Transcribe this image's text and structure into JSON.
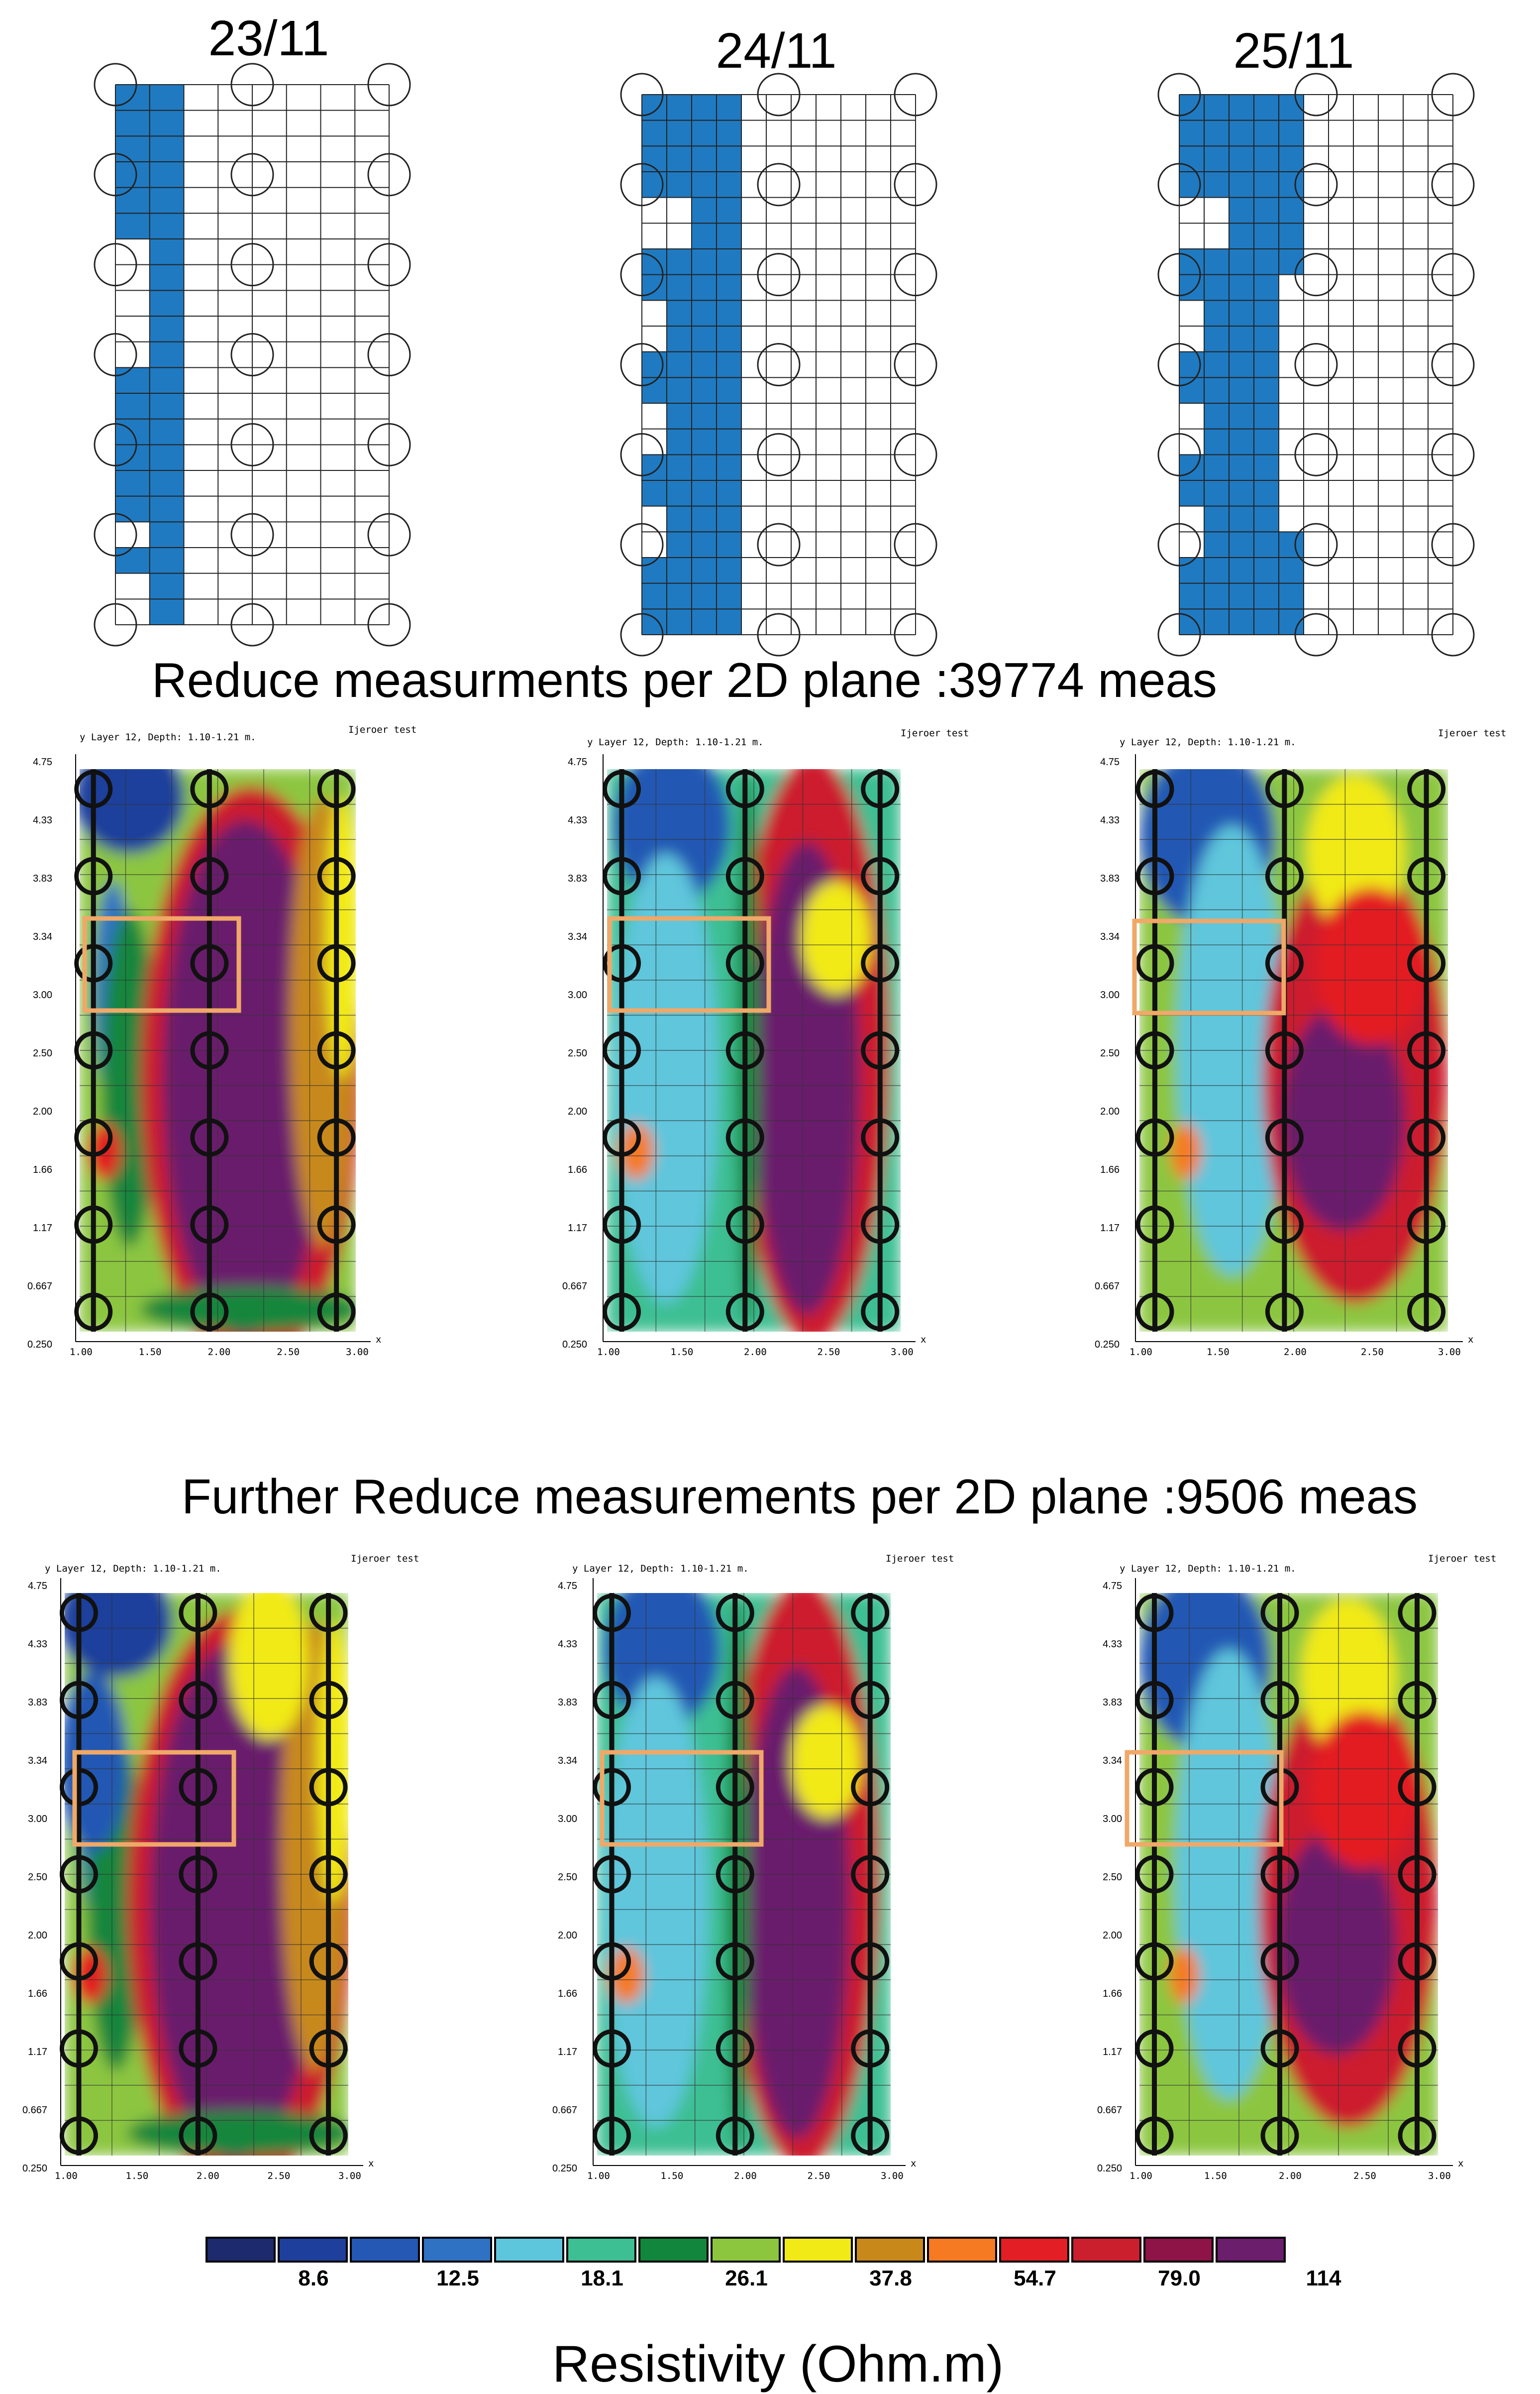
{
  "dates": [
    "23/11",
    "24/11",
    "25/11"
  ],
  "section1_title": "Reduce measurments per 2D plane :39774 meas",
  "section2_title": "Further Reduce measurements per 2D plane :9506 meas",
  "map_header": "y Layer 12, Depth: 1.10-1.21 m.",
  "map_tag": "Ijeroer test",
  "x_axis_letter": "x",
  "y_ticks": [
    "4.75",
    "4.33",
    "3.83",
    "3.34",
    "3.00",
    "2.50",
    "2.00",
    "1.66",
    "1.17",
    "0.667",
    "0.250"
  ],
  "x_ticks": [
    "1.00",
    "1.50",
    "2.00",
    "2.50",
    "3.00"
  ],
  "legend": {
    "title": "Resistivity (Ohm.m)",
    "labels": [
      "8.6",
      "12.5",
      "18.1",
      "26.1",
      "37.8",
      "54.7",
      "79.0",
      "114"
    ],
    "colors": [
      "#1e2a6e",
      "#1f3f9c",
      "#2458b4",
      "#2f72c4",
      "#5ec6dc",
      "#3dbf93",
      "#12863c",
      "#8cc63f",
      "#f1ea17",
      "#c8891a",
      "#f57a21",
      "#e31e24",
      "#cc1f2e",
      "#8e1346",
      "#6a1e6c"
    ]
  },
  "colors": {
    "grid_fill": "#1f7ac1",
    "outline_box": "#f0a868"
  },
  "chart_data": [
    {
      "type": "heatmap",
      "title": "23/11",
      "ylabel": "y",
      "xlabel": "x",
      "ylim": [
        0.25,
        4.75
      ],
      "rows": 21,
      "cols": 8,
      "blue_cells_row_major": [
        [
          0,
          1
        ],
        [
          0,
          2
        ],
        [
          0,
          1
        ],
        [
          0,
          2
        ],
        [
          0,
          1
        ],
        [
          0,
          2
        ],
        [
          1,
          1
        ],
        [
          1,
          2
        ],
        [
          1,
          2
        ],
        [
          1,
          1
        ],
        [
          1,
          2
        ],
        [
          0,
          1
        ],
        [
          0,
          2
        ],
        [
          0,
          1
        ],
        [
          0,
          2
        ],
        [
          0,
          1
        ],
        [
          0,
          2
        ],
        [
          1,
          1
        ],
        [
          0,
          2
        ],
        [
          1,
          1
        ],
        [
          1,
          2
        ]
      ]
    },
    {
      "type": "heatmap",
      "title": "24/11",
      "ylabel": "y",
      "xlabel": "x",
      "ylim": [
        0.25,
        4.75
      ],
      "rows": 21,
      "cols": 11
    },
    {
      "type": "heatmap",
      "title": "25/11",
      "ylabel": "y",
      "xlabel": "x",
      "ylim": [
        0.25,
        4.75
      ],
      "rows": 21,
      "cols": 11
    },
    {
      "type": "heatmap",
      "series": "Reduce measurments per 2D plane :39774 meas",
      "xlabel": "x",
      "y_ticks": [
        "4.75",
        "4.33",
        "3.83",
        "3.34",
        "3.00",
        "2.50",
        "2.00",
        "1.66",
        "1.17",
        "0.667",
        "0.250"
      ],
      "resistivity_scale": [
        "8.6",
        "12.5",
        "18.1",
        "26.1",
        "37.8",
        "54.7",
        "79.0",
        "114"
      ]
    },
    {
      "type": "heatmap",
      "series": "Further Reduce measurements per 2D plane :9506 meas",
      "xlabel": "x",
      "x_ticks": [
        "1.00",
        "1.50",
        "2.00",
        "2.50",
        "3.00"
      ],
      "y_ticks": [
        "4.75",
        "4.33",
        "3.83",
        "3.34",
        "3.00",
        "2.50",
        "2.00",
        "1.66",
        "1.17",
        "0.667",
        "0.250"
      ],
      "resistivity_scale": [
        "8.6",
        "12.5",
        "18.1",
        "26.1",
        "37.8",
        "54.7",
        "79.0",
        "114"
      ]
    }
  ]
}
